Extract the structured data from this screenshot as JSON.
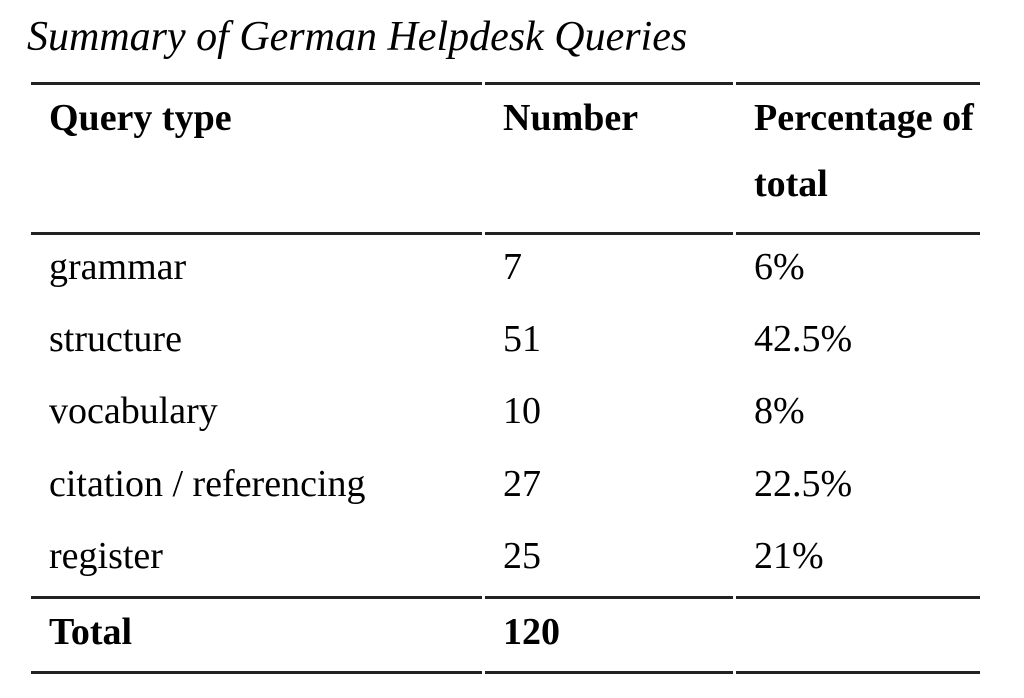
{
  "title": "Summary of German Helpdesk Queries",
  "table": {
    "headers": {
      "query_type": "Query type",
      "number": "Number",
      "percentage": "Percentage of total"
    },
    "rows": [
      {
        "query_type": "grammar",
        "number": "7",
        "percentage": "6%"
      },
      {
        "query_type": "structure",
        "number": "51",
        "percentage": "42.5%"
      },
      {
        "query_type": "vocabulary",
        "number": "10",
        "percentage": "8%"
      },
      {
        "query_type": "citation / referencing",
        "number": "27",
        "percentage": "22.5%"
      },
      {
        "query_type": "register",
        "number": "25",
        "percentage": "21%"
      }
    ],
    "total_row": {
      "label": "Total",
      "number": "120",
      "percentage": ""
    }
  },
  "chart_data": {
    "type": "table",
    "title": "Summary of German Helpdesk Queries",
    "columns": [
      "Query type",
      "Number",
      "Percentage of total"
    ],
    "rows": [
      [
        "grammar",
        7,
        "6%"
      ],
      [
        "structure",
        51,
        "42.5%"
      ],
      [
        "vocabulary",
        10,
        "8%"
      ],
      [
        "citation / referencing",
        27,
        "22.5%"
      ],
      [
        "register",
        25,
        "21%"
      ]
    ],
    "total": [
      "Total",
      120,
      ""
    ]
  },
  "colors": {
    "text": "#000000",
    "rule": "#222222",
    "background": "#ffffff"
  }
}
